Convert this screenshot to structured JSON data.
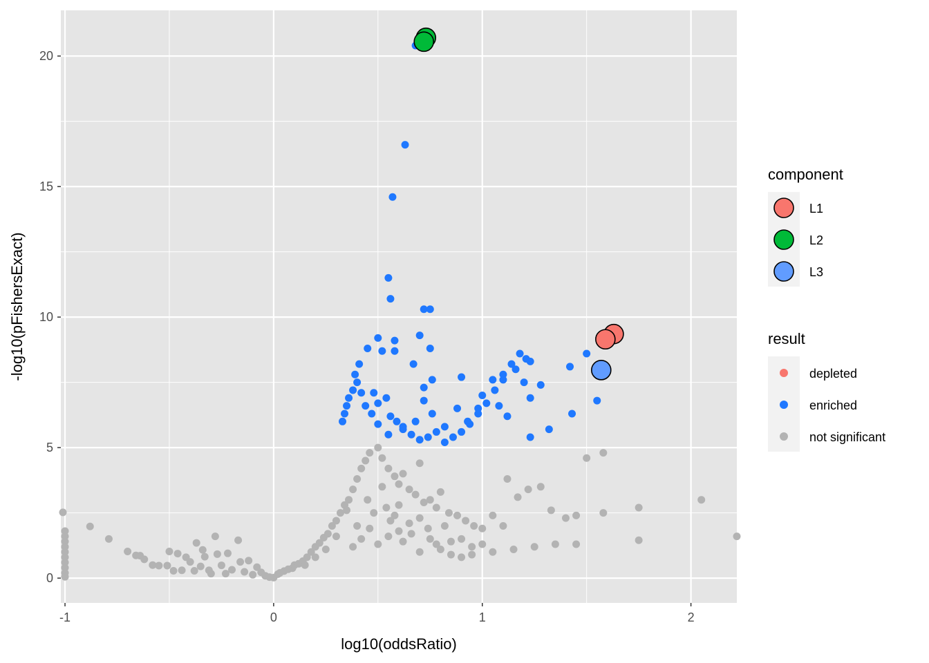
{
  "chart_data": {
    "type": "scatter",
    "title": "",
    "xlabel": "log10(oddsRatio)",
    "ylabel": "-log10(pFishersExact)",
    "xlim": [
      -1.02,
      2.22
    ],
    "ylim": [
      -0.95,
      21.75
    ],
    "x_ticks": [
      "-1",
      "0",
      "1",
      "2"
    ],
    "x_tick_values": [
      -1,
      0,
      1,
      2
    ],
    "y_ticks": [
      "0",
      "5",
      "10",
      "15",
      "20"
    ],
    "y_tick_values": [
      0,
      5,
      10,
      15,
      20
    ],
    "grid": true,
    "panel_background": "#E5E5E5",
    "grid_color": "#FFFFFF",
    "legend_position": "right",
    "legends": [
      {
        "title": "component",
        "items": [
          {
            "label": "L1",
            "color": "#F8766D"
          },
          {
            "label": "L2",
            "color": "#00BA38"
          },
          {
            "label": "L3",
            "color": "#619CFF"
          }
        ]
      },
      {
        "title": "result",
        "items": [
          {
            "label": "depleted",
            "color": "#F8766D"
          },
          {
            "label": "enriched",
            "color": "#1F78FF"
          },
          {
            "label": "not significant",
            "color": "#B3B3B3"
          }
        ]
      }
    ],
    "series": [
      {
        "name": "not significant",
        "color": "#B3B3B3",
        "points": [
          [
            -1.01,
            2.52
          ],
          [
            -1.0,
            1.8
          ],
          [
            -1.0,
            1.6
          ],
          [
            -1.0,
            1.4
          ],
          [
            -1.0,
            1.2
          ],
          [
            -1.0,
            1.0
          ],
          [
            -1.0,
            0.8
          ],
          [
            -1.0,
            0.6
          ],
          [
            -1.0,
            0.4
          ],
          [
            -1.0,
            0.2
          ],
          [
            -1.0,
            0.05
          ],
          [
            -0.88,
            1.98
          ],
          [
            -0.79,
            1.5
          ],
          [
            -0.7,
            1.02
          ],
          [
            -0.66,
            0.87
          ],
          [
            -0.64,
            0.86
          ],
          [
            -0.62,
            0.72
          ],
          [
            -0.58,
            0.5
          ],
          [
            -0.55,
            0.48
          ],
          [
            -0.51,
            0.48
          ],
          [
            -0.5,
            1.02
          ],
          [
            -0.48,
            0.28
          ],
          [
            -0.46,
            0.94
          ],
          [
            -0.44,
            0.3
          ],
          [
            -0.42,
            0.8
          ],
          [
            -0.4,
            0.62
          ],
          [
            -0.38,
            0.28
          ],
          [
            -0.37,
            1.35
          ],
          [
            -0.35,
            0.45
          ],
          [
            -0.34,
            1.08
          ],
          [
            -0.33,
            0.82
          ],
          [
            -0.31,
            0.3
          ],
          [
            -0.3,
            0.17
          ],
          [
            -0.28,
            1.6
          ],
          [
            -0.27,
            0.92
          ],
          [
            -0.25,
            0.49
          ],
          [
            -0.23,
            0.17
          ],
          [
            -0.22,
            0.95
          ],
          [
            -0.2,
            0.32
          ],
          [
            -0.17,
            1.45
          ],
          [
            -0.16,
            0.62
          ],
          [
            -0.14,
            0.24
          ],
          [
            -0.12,
            0.67
          ],
          [
            -0.1,
            0.13
          ],
          [
            -0.08,
            0.42
          ],
          [
            -0.06,
            0.22
          ],
          [
            -0.04,
            0.09
          ],
          [
            -0.02,
            0.04
          ],
          [
            0.0,
            0.02
          ],
          [
            0.02,
            0.15
          ],
          [
            0.03,
            0.2
          ],
          [
            0.05,
            0.27
          ],
          [
            0.07,
            0.34
          ],
          [
            0.09,
            0.38
          ],
          [
            0.1,
            0.5
          ],
          [
            0.12,
            0.55
          ],
          [
            0.14,
            0.65
          ],
          [
            0.16,
            0.8
          ],
          [
            0.18,
            1.0
          ],
          [
            0.2,
            1.2
          ],
          [
            0.22,
            1.35
          ],
          [
            0.24,
            1.55
          ],
          [
            0.26,
            1.7
          ],
          [
            0.28,
            2.0
          ],
          [
            0.3,
            2.2
          ],
          [
            0.32,
            2.5
          ],
          [
            0.34,
            2.8
          ],
          [
            0.36,
            3.0
          ],
          [
            0.38,
            3.4
          ],
          [
            0.4,
            3.8
          ],
          [
            0.42,
            4.2
          ],
          [
            0.44,
            4.5
          ],
          [
            0.46,
            4.8
          ],
          [
            0.5,
            5.0
          ],
          [
            0.52,
            4.6
          ],
          [
            0.55,
            4.2
          ],
          [
            0.58,
            3.9
          ],
          [
            0.6,
            3.6
          ],
          [
            0.62,
            4.0
          ],
          [
            0.65,
            3.4
          ],
          [
            0.68,
            3.2
          ],
          [
            0.7,
            4.4
          ],
          [
            0.72,
            2.9
          ],
          [
            0.75,
            3.0
          ],
          [
            0.78,
            2.7
          ],
          [
            0.8,
            3.3
          ],
          [
            0.84,
            2.5
          ],
          [
            0.88,
            2.4
          ],
          [
            0.92,
            2.2
          ],
          [
            0.96,
            2.0
          ],
          [
            1.0,
            1.9
          ],
          [
            1.05,
            2.4
          ],
          [
            1.1,
            2.0
          ],
          [
            1.12,
            3.8
          ],
          [
            1.17,
            3.1
          ],
          [
            1.22,
            3.4
          ],
          [
            1.28,
            3.5
          ],
          [
            1.33,
            2.6
          ],
          [
            1.4,
            2.3
          ],
          [
            1.45,
            1.3
          ],
          [
            1.5,
            4.6
          ],
          [
            1.58,
            4.8
          ],
          [
            1.58,
            2.5
          ],
          [
            1.75,
            2.7
          ],
          [
            1.75,
            1.45
          ],
          [
            2.05,
            3.0
          ],
          [
            2.22,
            1.6
          ],
          [
            1.05,
            1.0
          ],
          [
            1.15,
            1.1
          ],
          [
            1.25,
            1.2
          ],
          [
            1.35,
            1.3
          ],
          [
            1.45,
            2.4
          ],
          [
            0.9,
            0.8
          ],
          [
            0.95,
            1.2
          ],
          [
            0.85,
            1.4
          ],
          [
            0.45,
            3.0
          ],
          [
            0.48,
            2.5
          ],
          [
            0.52,
            3.5
          ],
          [
            0.56,
            2.2
          ],
          [
            0.6,
            2.8
          ],
          [
            0.35,
            2.6
          ],
          [
            0.4,
            2.0
          ],
          [
            0.3,
            1.6
          ],
          [
            0.25,
            1.1
          ],
          [
            0.2,
            0.8
          ],
          [
            0.15,
            0.5
          ],
          [
            0.5,
            1.3
          ],
          [
            0.55,
            1.6
          ],
          [
            0.6,
            1.8
          ],
          [
            0.65,
            2.1
          ],
          [
            0.7,
            2.3
          ],
          [
            0.75,
            1.5
          ],
          [
            0.8,
            1.1
          ],
          [
            0.85,
            0.9
          ],
          [
            0.9,
            1.5
          ],
          [
            0.95,
            0.9
          ],
          [
            1.0,
            1.3
          ],
          [
            0.38,
            1.2
          ],
          [
            0.42,
            1.5
          ],
          [
            0.46,
            1.9
          ],
          [
            0.54,
            2.7
          ],
          [
            0.58,
            2.4
          ],
          [
            0.62,
            1.4
          ],
          [
            0.66,
            1.7
          ],
          [
            0.7,
            1.0
          ],
          [
            0.74,
            1.9
          ],
          [
            0.78,
            1.3
          ],
          [
            0.82,
            2.0
          ]
        ]
      },
      {
        "name": "enriched",
        "color": "#1F78FF",
        "points": [
          [
            0.68,
            20.4
          ],
          [
            0.63,
            16.6
          ],
          [
            0.57,
            14.6
          ],
          [
            0.55,
            11.5
          ],
          [
            0.56,
            10.7
          ],
          [
            0.72,
            10.3
          ],
          [
            0.75,
            10.3
          ],
          [
            0.7,
            9.3
          ],
          [
            0.75,
            8.8
          ],
          [
            0.5,
            9.2
          ],
          [
            0.58,
            9.1
          ],
          [
            0.45,
            8.8
          ],
          [
            0.52,
            8.7
          ],
          [
            0.58,
            8.7
          ],
          [
            0.41,
            8.2
          ],
          [
            0.67,
            8.2
          ],
          [
            0.72,
            7.3
          ],
          [
            0.76,
            7.6
          ],
          [
            0.9,
            7.7
          ],
          [
            1.05,
            7.6
          ],
          [
            1.1,
            7.8
          ],
          [
            1.14,
            8.2
          ],
          [
            1.18,
            8.6
          ],
          [
            1.23,
            8.3
          ],
          [
            1.28,
            7.4
          ],
          [
            1.42,
            8.1
          ],
          [
            1.5,
            8.6
          ],
          [
            1.55,
            6.8
          ],
          [
            1.43,
            6.3
          ],
          [
            1.32,
            5.7
          ],
          [
            1.23,
            5.4
          ],
          [
            1.2,
            7.5
          ],
          [
            1.23,
            6.9
          ],
          [
            1.12,
            6.2
          ],
          [
            1.08,
            6.6
          ],
          [
            1.0,
            7.0
          ],
          [
            0.98,
            6.5
          ],
          [
            0.93,
            6.0
          ],
          [
            0.88,
            6.5
          ],
          [
            0.82,
            5.8
          ],
          [
            0.76,
            6.3
          ],
          [
            0.72,
            6.8
          ],
          [
            0.68,
            6.0
          ],
          [
            0.62,
            5.8
          ],
          [
            0.55,
            5.5
          ],
          [
            0.5,
            5.9
          ],
          [
            0.47,
            6.3
          ],
          [
            0.44,
            6.6
          ],
          [
            0.42,
            7.1
          ],
          [
            0.4,
            7.5
          ],
          [
            0.39,
            7.8
          ],
          [
            0.38,
            7.2
          ],
          [
            0.36,
            6.9
          ],
          [
            0.35,
            6.6
          ],
          [
            0.34,
            6.3
          ],
          [
            0.33,
            6.0
          ],
          [
            0.48,
            7.1
          ],
          [
            0.5,
            6.7
          ],
          [
            0.54,
            6.9
          ],
          [
            0.56,
            6.2
          ],
          [
            0.59,
            6.0
          ],
          [
            0.62,
            5.7
          ],
          [
            0.66,
            5.5
          ],
          [
            0.7,
            5.3
          ],
          [
            0.74,
            5.4
          ],
          [
            0.78,
            5.6
          ],
          [
            0.82,
            5.2
          ],
          [
            0.86,
            5.4
          ],
          [
            0.9,
            5.6
          ],
          [
            0.94,
            5.9
          ],
          [
            0.98,
            6.3
          ],
          [
            1.02,
            6.7
          ],
          [
            1.06,
            7.2
          ],
          [
            1.1,
            7.6
          ],
          [
            1.16,
            8.0
          ],
          [
            1.21,
            8.4
          ]
        ]
      },
      {
        "name": "component",
        "points": [
          {
            "x": 1.63,
            "y": 9.35,
            "component": "L1",
            "color": "#F8766D"
          },
          {
            "x": 1.59,
            "y": 9.15,
            "component": "L1",
            "color": "#F8766D"
          },
          {
            "x": 0.73,
            "y": 20.7,
            "component": "L2",
            "color": "#00BA38"
          },
          {
            "x": 0.72,
            "y": 20.55,
            "component": "L2",
            "color": "#00BA38"
          },
          {
            "x": 1.57,
            "y": 7.97,
            "component": "L3",
            "color": "#619CFF"
          }
        ]
      }
    ]
  }
}
